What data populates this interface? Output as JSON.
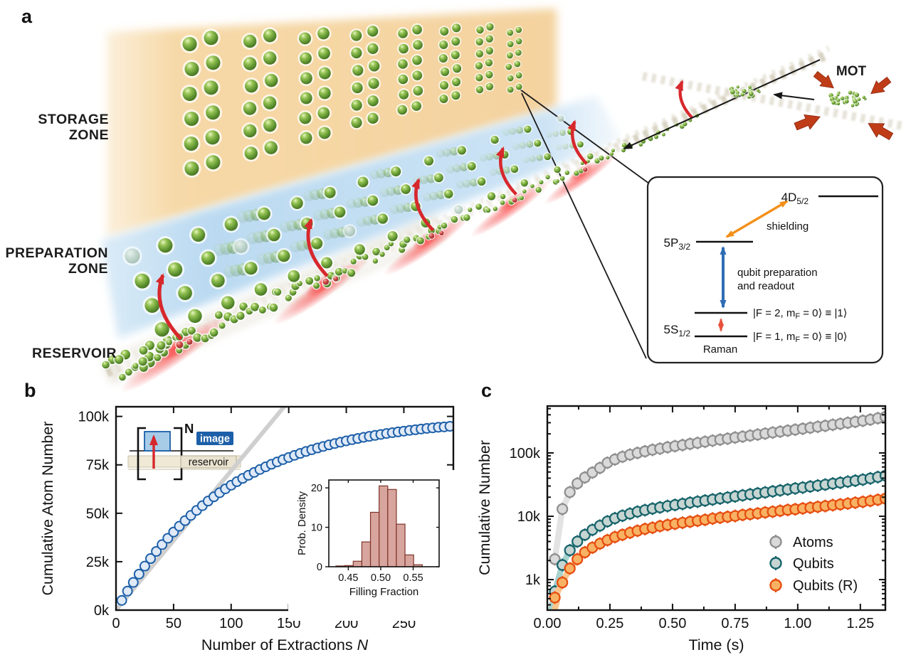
{
  "panels": {
    "a": "a",
    "b": "b",
    "c": "c"
  },
  "panel_a": {
    "zone_labels": {
      "storage": [
        "STORAGE",
        "ZONE"
      ],
      "preparation": [
        "PREPARATION",
        "ZONE"
      ],
      "reservoir": "RESERVOIR",
      "mot": "MOT"
    },
    "level_diagram": {
      "levels": {
        "d": {
          "main": "4D",
          "sub": "5/2"
        },
        "p": {
          "main": "5P",
          "sub": "3/2"
        },
        "s": {
          "main": "5S",
          "sub": "1/2"
        }
      },
      "shielding_label": "shielding",
      "qubit_label_1": "qubit preparation",
      "qubit_label_2": "and readout",
      "raman_label": "Raman",
      "state1": {
        "pre": "|F = 2, m",
        "sub": "F",
        "post": " = 0⟩ ≡ |1⟩"
      },
      "state0": {
        "pre": "|F = 1, m",
        "sub": "F",
        "post": " = 0⟩ ≡ |0⟩"
      },
      "arrow_colors": {
        "shielding": "#f39019",
        "qubit": "#2e6db4",
        "raman": "#e8503c"
      }
    },
    "colors": {
      "storage_zone": "#f6d8a5",
      "preparation_zone": "#bcdaf0",
      "conveyor": "#d2ccba",
      "laser": "#f23c3c",
      "extraction_arrow": "#d7282c",
      "mot_arrow": "#bf3c17",
      "atom_green": "#6fae3a",
      "atom_red": "#c4373d"
    }
  },
  "panel_b_inset": {
    "n_label": "N",
    "image_label": "image",
    "reservoir_label": "reservoir",
    "image_color": "#1d5fa8",
    "reservoir_color": "#e9e3d0"
  },
  "chart_data": [
    {
      "id": "b_main",
      "type": "scatter",
      "xlabel": "Number of Extractions",
      "xlabel_suffix_italic": "N",
      "ylabel": "Cumulative Atom Number",
      "xlim": [
        0,
        293
      ],
      "ylim": [
        0,
        105000
      ],
      "xticks": [
        0,
        50,
        100,
        150,
        200,
        250
      ],
      "xtick_labels": [
        "0",
        "50",
        "100",
        "150",
        "200",
        "250"
      ],
      "yticks": [
        0,
        25000,
        50000,
        75000,
        100000
      ],
      "ytick_labels": [
        "0k",
        "25k",
        "50k",
        "75k",
        "100k"
      ],
      "reference_line": {
        "x1": 0,
        "y1": 0,
        "x2": 146,
        "y2": 105000,
        "color": "#cfcfcf",
        "width": 6
      },
      "series": [
        {
          "name": "cumulative atoms",
          "stroke": "#1d5fa8",
          "fill": "#dfe9f7",
          "band": "#c2d7ee",
          "x": [
            5,
            10,
            15,
            20,
            25,
            30,
            35,
            40,
            45,
            50,
            55,
            60,
            65,
            70,
            75,
            80,
            85,
            90,
            95,
            100,
            105,
            110,
            115,
            120,
            125,
            130,
            135,
            140,
            145,
            150,
            155,
            160,
            165,
            170,
            175,
            180,
            185,
            190,
            195,
            200,
            205,
            210,
            215,
            220,
            225,
            230,
            235,
            240,
            245,
            250,
            255,
            260,
            265,
            270,
            275,
            280,
            285,
            290
          ],
          "y": [
            5000,
            9800,
            14300,
            18600,
            22700,
            26600,
            30300,
            33800,
            37100,
            40300,
            43300,
            46200,
            48900,
            51500,
            53900,
            56300,
            58500,
            60600,
            62600,
            64500,
            66300,
            68000,
            69600,
            71100,
            72600,
            74000,
            75300,
            76500,
            77700,
            78800,
            79900,
            80900,
            81900,
            82800,
            83700,
            84500,
            85300,
            86000,
            86700,
            87400,
            88000,
            88600,
            89200,
            89700,
            90200,
            90700,
            91200,
            91600,
            92000,
            92400,
            92800,
            93100,
            93500,
            93800,
            94100,
            94400,
            94600,
            94900
          ]
        }
      ]
    },
    {
      "id": "b_inset_hist",
      "type": "bar",
      "xlabel": "Filling Fraction",
      "ylabel": "Prob. Density",
      "xlim": [
        0.42,
        0.59
      ],
      "ylim": [
        0,
        22
      ],
      "xticks": [
        0.45,
        0.5,
        0.55
      ],
      "xtick_labels": [
        "0.45",
        "0.50",
        "0.55"
      ],
      "yticks": [
        0,
        10,
        20
      ],
      "ytick_labels": [
        "0",
        "10",
        "20"
      ],
      "bin_start": 0.431,
      "bin_width": 0.0133,
      "densities": [
        0.2,
        0.3,
        1.4,
        6.3,
        13.8,
        20.5,
        19.6,
        10.8,
        3.0,
        0.5
      ],
      "bar_fill": "#d7a59d",
      "bar_stroke": "#7f342a"
    },
    {
      "id": "c_main",
      "type": "scatter",
      "yscale": "log",
      "xlabel": "Time (s)",
      "ylabel": "Cumulative Number",
      "xlim": [
        0,
        1.35
      ],
      "ylim": [
        330,
        550000
      ],
      "xticks": [
        0,
        0.25,
        0.5,
        0.75,
        1.0,
        1.25
      ],
      "xtick_labels": [
        "0.00",
        "0.25",
        "0.50",
        "0.75",
        "1.00",
        "1.25"
      ],
      "xminor": [
        0.125,
        0.375,
        0.625,
        0.875,
        1.125
      ],
      "yticks": [
        1000,
        10000,
        100000
      ],
      "ytick_labels": [
        "1k",
        "10k",
        "100k"
      ],
      "legend": {
        "position": "lower right",
        "entries": [
          "Atoms",
          "Qubits",
          "Qubits (R)"
        ]
      },
      "x_shared": [
        0.03,
        0.06,
        0.09,
        0.12,
        0.15,
        0.18,
        0.21,
        0.24,
        0.27,
        0.3,
        0.33,
        0.36,
        0.39,
        0.42,
        0.45,
        0.48,
        0.51,
        0.54,
        0.57,
        0.6,
        0.63,
        0.66,
        0.69,
        0.72,
        0.75,
        0.78,
        0.81,
        0.84,
        0.87,
        0.9,
        0.93,
        0.96,
        0.99,
        1.02,
        1.05,
        1.08,
        1.11,
        1.14,
        1.17,
        1.2,
        1.23,
        1.26,
        1.29,
        1.32,
        1.35
      ],
      "series": [
        {
          "name": "Atoms",
          "stroke": "#8f8f8f",
          "fill": "#dadada",
          "band": "#e3e3e3",
          "y": [
            2100,
            13000,
            24000,
            33000,
            41000,
            49000,
            58000,
            70000,
            79000,
            87000,
            94000,
            100000,
            106000,
            112000,
            117000,
            123000,
            128000,
            133000,
            139000,
            144000,
            150000,
            156000,
            162000,
            168000,
            175000,
            181000,
            188000,
            195000,
            202000,
            210000,
            217000,
            225000,
            233000,
            241000,
            250000,
            259000,
            268000,
            278000,
            288000,
            299000,
            310000,
            322000,
            336000,
            353000,
            372000
          ]
        },
        {
          "name": "Qubits",
          "stroke": "#17646b",
          "fill": "#c6d5d2",
          "band": "#a7d2ce",
          "band_lead": [
            [
              0.016,
              340
            ],
            [
              0.022,
              470
            ]
          ],
          "y": [
            650,
            1700,
            2900,
            4000,
            5100,
            6100,
            7100,
            8300,
            9300,
            10200,
            11000,
            11800,
            12500,
            13200,
            13800,
            14500,
            15100,
            15700,
            16400,
            17000,
            17700,
            18400,
            19100,
            19800,
            20600,
            21400,
            22200,
            23000,
            23800,
            24700,
            25600,
            26500,
            27500,
            28400,
            29500,
            30500,
            31600,
            32800,
            33900,
            35200,
            36500,
            37900,
            39600,
            41600,
            43800
          ]
        },
        {
          "name": "Qubits (R)",
          "stroke": "#e64e10",
          "fill": "#f8b264",
          "band": "#f9c78e",
          "band_lead": [
            [
              0.03,
              340
            ],
            [
              0.038,
              440
            ]
          ],
          "y": [
            520,
            900,
            1500,
            2100,
            2700,
            3200,
            3700,
            4200,
            4700,
            5100,
            5500,
            5900,
            6300,
            6600,
            7000,
            7300,
            7600,
            7900,
            8200,
            8500,
            8800,
            9200,
            9500,
            9800,
            10100,
            10500,
            10800,
            11100,
            11500,
            11800,
            12200,
            12600,
            12900,
            13300,
            13700,
            14100,
            14500,
            15000,
            15400,
            15900,
            16400,
            16900,
            17500,
            18200,
            19000
          ]
        }
      ]
    }
  ]
}
